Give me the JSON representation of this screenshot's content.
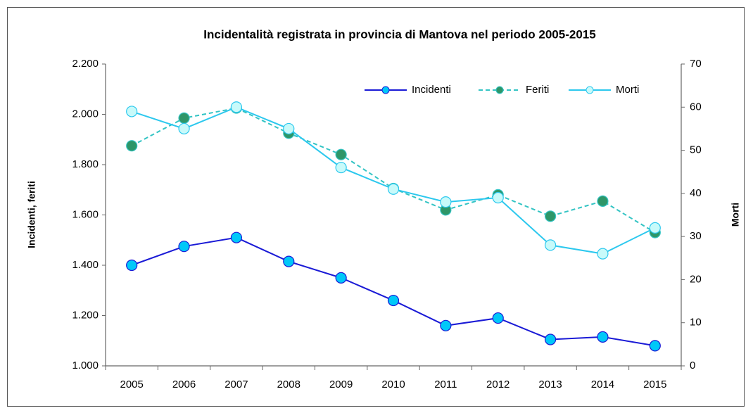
{
  "chart_data": {
    "type": "line",
    "title": "Incidentalità registrata in provincia di Mantova nel periodo 2005-2015",
    "ylabel": "Incidenti,  feriti",
    "y2label": "Morti",
    "categories": [
      "2005",
      "2006",
      "2007",
      "2008",
      "2009",
      "2010",
      "2011",
      "2012",
      "2013",
      "2014",
      "2015"
    ],
    "ylim": [
      1000,
      2200
    ],
    "yticks": [
      {
        "value": 1000,
        "label": "1.000"
      },
      {
        "value": 1200,
        "label": "1.200"
      },
      {
        "value": 1400,
        "label": "1.400"
      },
      {
        "value": 1600,
        "label": "1.600"
      },
      {
        "value": 1800,
        "label": "1.800"
      },
      {
        "value": 2000,
        "label": "2.000"
      },
      {
        "value": 2200,
        "label": "2.200"
      }
    ],
    "y2lim": [
      0,
      70
    ],
    "y2ticks": [
      0,
      10,
      20,
      30,
      40,
      50,
      60,
      70
    ],
    "legend": "top-right",
    "series": [
      {
        "name": "Incidenti",
        "color": "#1a1ad6",
        "marker_color": "#00c8f8",
        "dash": false,
        "values": [
          1400,
          1475,
          1510,
          1415,
          1350,
          1260,
          1160,
          1190,
          1105,
          1115,
          1080
        ]
      },
      {
        "name": "Feriti",
        "color": "#33c4c4",
        "marker_color": "#2e9668",
        "dash": true,
        "values": [
          1875,
          1985,
          2025,
          1925,
          1840,
          1705,
          1620,
          1680,
          1595,
          1655,
          1530
        ]
      },
      {
        "name": "Morti",
        "color": "#2cc8ee",
        "marker_color": "#c8fafa",
        "dash": false,
        "axis": "y2",
        "values": [
          59,
          55,
          60,
          55,
          46,
          41,
          38,
          39,
          28,
          26,
          32
        ]
      }
    ]
  }
}
